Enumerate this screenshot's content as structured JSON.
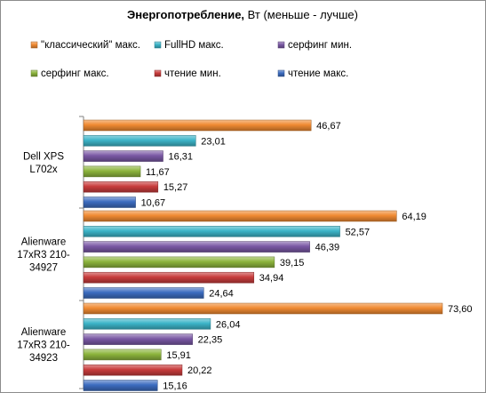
{
  "chart_data": {
    "type": "bar",
    "orientation": "horizontal",
    "title_bold": "Энергопотребление,",
    "title_rest": " Вт (меньше - лучше)",
    "categories": [
      [
        "Dell XPS",
        "L702x"
      ],
      [
        "Alienware",
        "17xR3 210-",
        "34927"
      ],
      [
        "Alienware",
        "17xR3 210-",
        "34923"
      ]
    ],
    "series": [
      {
        "name": "\"классический\" макс.",
        "color": "#f08a32",
        "values": [
          46.67,
          64.19,
          73.6
        ],
        "labels": [
          "46,67",
          "64,19",
          "73,60"
        ]
      },
      {
        "name": "FullHD макс.",
        "color": "#3cb4c8",
        "values": [
          23.01,
          52.57,
          26.04
        ],
        "labels": [
          "23,01",
          "52,57",
          "26,04"
        ]
      },
      {
        "name": "серфинг мин.",
        "color": "#7a58a4",
        "values": [
          16.31,
          46.39,
          22.35
        ],
        "labels": [
          "16,31",
          "46,39",
          "22,35"
        ]
      },
      {
        "name": "серфинг макс.",
        "color": "#8cb43c",
        "values": [
          11.67,
          39.15,
          15.91
        ],
        "labels": [
          "11,67",
          "39,15",
          "15,91"
        ]
      },
      {
        "name": "чтение мин.",
        "color": "#c83c3c",
        "values": [
          15.27,
          34.94,
          20.22
        ],
        "labels": [
          "15,27",
          "34,94",
          "20,22"
        ]
      },
      {
        "name": "чтение макс.",
        "color": "#3c6cc0",
        "values": [
          10.67,
          24.64,
          15.16
        ],
        "labels": [
          "10,67",
          "24,64",
          "15,16"
        ]
      }
    ],
    "xlim": [
      0,
      80
    ],
    "grid": false,
    "legend_position": "top"
  }
}
